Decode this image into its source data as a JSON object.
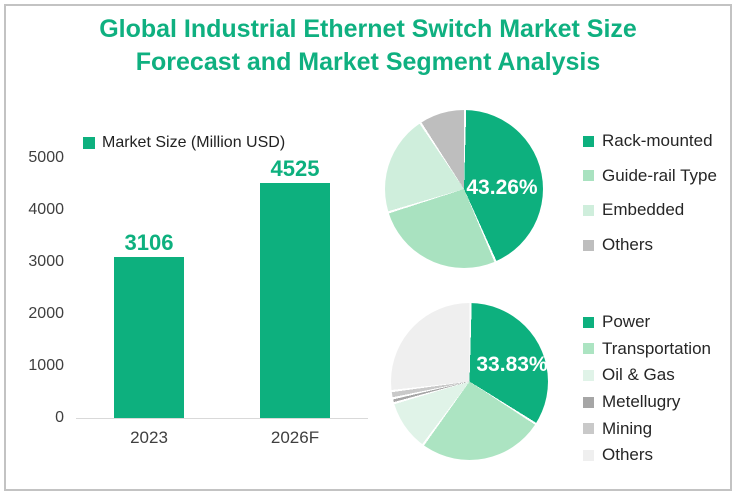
{
  "title": {
    "line1": "Global Industrial Ethernet Switch Market Size",
    "line2": "Forecast and Market Segment Analysis"
  },
  "colors": {
    "accent_green": "#0DB07E",
    "title_green": "#0FB080",
    "axis_text": "#3F3F3F",
    "axis_line": "#D9D9D9",
    "frame_border": "#C3C3C3",
    "pie_label_text": "#FFFFFF"
  },
  "chart_data": [
    {
      "type": "bar",
      "title": "Market Size (Million USD)",
      "categories": [
        "2023",
        "2026F"
      ],
      "values": [
        3106,
        4525
      ],
      "bar_color": "#0DB07E",
      "ylim": [
        0,
        5000
      ],
      "yticks": [
        0,
        1000,
        2000,
        3000,
        4000,
        5000
      ],
      "grid": false,
      "legend_position": "top",
      "value_labels_shown": true
    },
    {
      "type": "pie",
      "labels": [
        "Rack-mounted",
        "Guide-rail Type",
        "Embedded",
        "Others"
      ],
      "values": [
        43.26,
        26.74,
        20.5,
        9.5
      ],
      "colors": [
        "#0DB07E",
        "#A9E2C0",
        "#CFEEDC",
        "#BEBEBE"
      ],
      "data_label": "43.26%",
      "data_label_slice": "Rack-mounted",
      "label_color": "#FFFFFF",
      "legend_position": "right",
      "start_angle_deg": 0,
      "direction": "clockwise"
    },
    {
      "type": "pie",
      "labels": [
        "Power",
        "Transportation",
        "Oil & Gas",
        "Metellugry",
        "Mining",
        "Others"
      ],
      "values": [
        33.83,
        26.0,
        10.5,
        1.0,
        1.5,
        27.17
      ],
      "colors": [
        "#0DB07E",
        "#ACE4C2",
        "#E0F3E8",
        "#A6A6A6",
        "#C9C9C9",
        "#EFEFEF"
      ],
      "data_label": "33.83%",
      "data_label_slice": "Power",
      "label_color": "#FFFFFF",
      "legend_position": "right",
      "start_angle_deg": 0,
      "direction": "clockwise"
    }
  ]
}
